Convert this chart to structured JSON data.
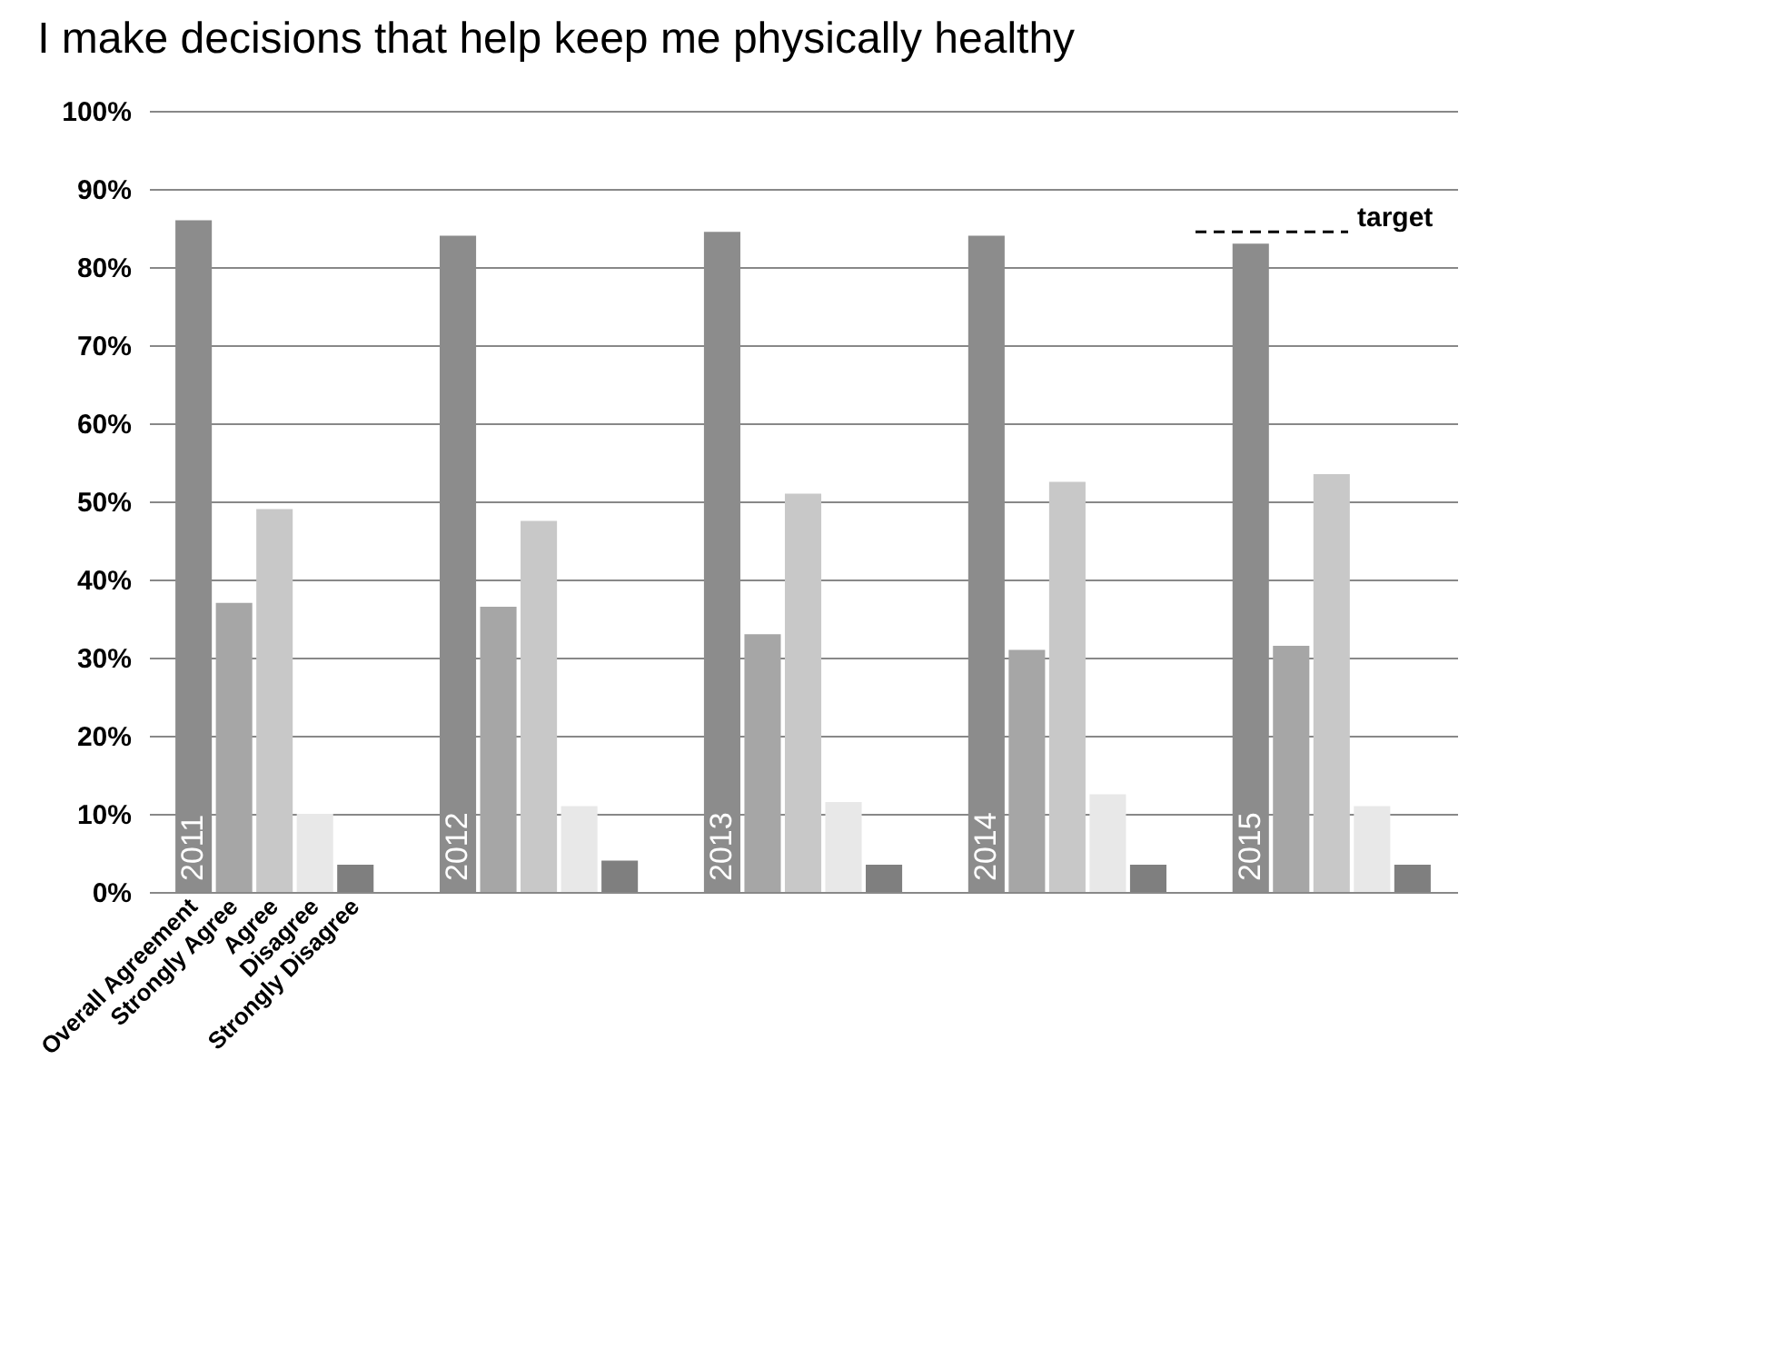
{
  "chart_data": {
    "type": "bar",
    "title": "I make decisions that help keep me physically healthy",
    "categories": [
      null,
      null,
      null,
      null,
      null
    ],
    "annotations": [
      "2011",
      "2012",
      "2013",
      "2014",
      "2015"
    ],
    "series": [
      {
        "name": "Overall Agreement",
        "color": "#8c8c8c",
        "values": [
          86,
          84,
          84.5,
          84,
          83
        ]
      },
      {
        "name": "Strongly Agree",
        "color": "#a6a6a6",
        "values": [
          37,
          36.5,
          33,
          31,
          31.5
        ]
      },
      {
        "name": "Agree",
        "color": "#c8c8c8",
        "values": [
          49,
          47.5,
          51,
          52.5,
          53.5
        ]
      },
      {
        "name": "Disagree",
        "color": "#e8e8e8",
        "values": [
          10,
          11,
          11.5,
          12.5,
          11
        ]
      },
      {
        "name": "Strongly Disagree",
        "color": "#7f7f7f",
        "values": [
          3.5,
          4,
          3.5,
          3.5,
          3.5
        ]
      }
    ],
    "ylim": [
      0,
      100
    ],
    "yticks": [
      {
        "value": 0,
        "label": "0%"
      },
      {
        "value": 10,
        "label": "10%"
      },
      {
        "value": 20,
        "label": "20%"
      },
      {
        "value": 30,
        "label": "30%"
      },
      {
        "value": 40,
        "label": "40%"
      },
      {
        "value": 50,
        "label": "50%"
      },
      {
        "value": 60,
        "label": "60%"
      },
      {
        "value": 70,
        "label": "70%"
      },
      {
        "value": 80,
        "label": "80%"
      },
      {
        "value": 90,
        "label": "90%"
      },
      {
        "value": 100,
        "label": "100%"
      }
    ],
    "grid": "y",
    "ref_lines": [
      {
        "axis": "y",
        "value": 84.5,
        "label": "target",
        "line_style": "dashed",
        "color": "#000000"
      }
    ]
  }
}
